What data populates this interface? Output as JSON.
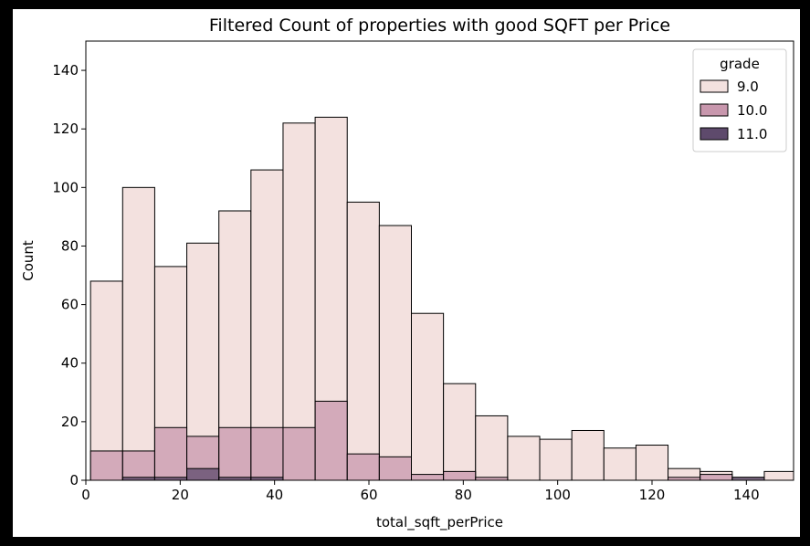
{
  "chart_data": {
    "type": "bar",
    "title": "Filtered Count of properties with good SQFT per Price",
    "xlabel": "total_sqft_perPrice",
    "ylabel": "Count",
    "xlim": [
      0,
      150
    ],
    "ylim": [
      0,
      150
    ],
    "xticks": [
      0,
      20,
      40,
      60,
      80,
      100,
      120,
      140
    ],
    "yticks": [
      0,
      20,
      40,
      60,
      80,
      100,
      120,
      140
    ],
    "bin_edges": [
      1,
      7.8,
      14.6,
      21.4,
      28.2,
      35,
      41.8,
      48.6,
      55.4,
      62.2,
      69,
      75.8,
      82.6,
      89.4,
      96.2,
      103,
      109.8,
      116.6,
      123.4,
      130.2,
      137,
      143.8,
      150.6
    ],
    "legend": {
      "title": "grade",
      "position": "top-right"
    },
    "grid": false,
    "series": [
      {
        "name": "9.0",
        "color": "#f3e1df",
        "values": [
          68,
          100,
          73,
          81,
          92,
          106,
          122,
          124,
          95,
          87,
          57,
          33,
          22,
          15,
          14,
          17,
          11,
          12,
          4,
          3,
          1,
          3
        ]
      },
      {
        "name": "10.0",
        "color": "#c897ad",
        "values": [
          10,
          10,
          18,
          15,
          18,
          18,
          18,
          27,
          9,
          8,
          2,
          3,
          1,
          0,
          0,
          0,
          0,
          0,
          1,
          2,
          0,
          0
        ]
      },
      {
        "name": "11.0",
        "color": "#5e4a6c",
        "values": [
          0,
          1,
          1,
          4,
          1,
          1,
          0,
          0,
          0,
          0,
          0,
          0,
          0,
          0,
          0,
          0,
          0,
          0,
          0,
          0,
          1,
          0
        ]
      }
    ]
  }
}
